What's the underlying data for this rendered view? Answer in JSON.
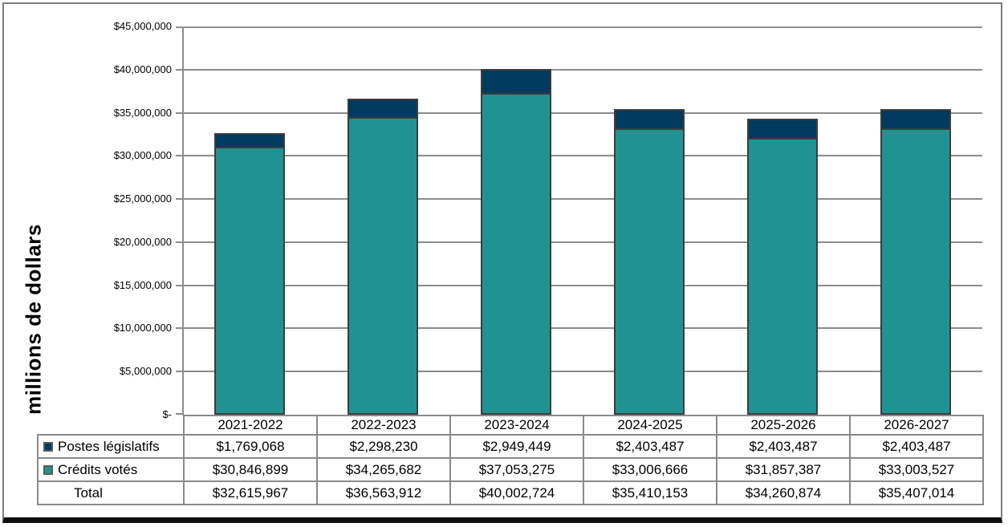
{
  "chart_data": {
    "type": "bar",
    "stacked": true,
    "categories": [
      "2021-2022",
      "2022-2023",
      "2023-2024",
      "2024-2025",
      "2025-2026",
      "2026-2027"
    ],
    "series": [
      {
        "name": "Postes législatifs",
        "color": "#003a5e",
        "slug": "postes-legislatifs",
        "values": [
          1769068,
          2298230,
          2949449,
          2403487,
          2403487,
          2403487
        ],
        "display": [
          "$1,769,068",
          "$2,298,230",
          "$2,949,449",
          "$2,403,487",
          "$2,403,487",
          "$2,403,487"
        ]
      },
      {
        "name": "Crédits votés",
        "color": "#219292",
        "slug": "credits-votes",
        "values": [
          30846899,
          34265682,
          37053275,
          33006666,
          31857387,
          33003527
        ],
        "display": [
          "$30,846,899",
          "$34,265,682",
          "$37,053,275",
          "$33,006,666",
          "$31,857,387",
          "$33,003,527"
        ]
      }
    ],
    "total_row": {
      "name": "Total",
      "values": [
        32615967,
        36563912,
        40002724,
        35410153,
        34260874,
        35407014
      ],
      "display": [
        "$32,615,967",
        "$36,563,912",
        "$40,002,724",
        "$35,410,153",
        "$34,260,874",
        "$35,407,014"
      ]
    },
    "ylabel": "millions de dollars",
    "ylim": [
      0,
      45000000
    ],
    "ytick_step": 5000000,
    "ytick_labels_top_to_bottom": [
      "$45,000,000",
      "$40,000,000",
      "$35,000,000",
      "$30,000,000",
      "$25,000,000",
      "$20,000,000",
      "$15,000,000",
      "$10,000,000",
      "$5,000,000",
      "$-"
    ],
    "grid": true,
    "legend_position": "table-row-headers",
    "colors": {
      "grid": "#8c8c8c",
      "bar_border": "#3d3d3d",
      "table_border": "#8a8a8a",
      "frame_border": "#7f7f7f",
      "frame_bottom": "#0e0e0e",
      "text": "#000000",
      "background": "#ffffff"
    }
  }
}
